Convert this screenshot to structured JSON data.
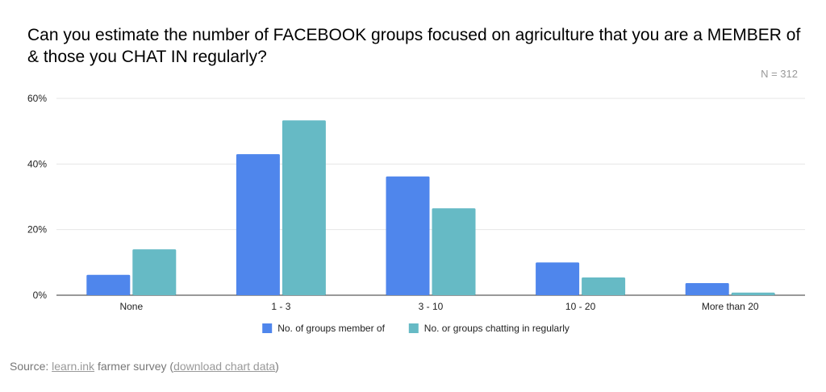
{
  "chart_data": {
    "type": "bar",
    "title": "Can you estimate the number of FACEBOOK groups focused on agriculture that you are a MEMBER of & those you CHAT IN regularly?",
    "note": "N = 312",
    "categories": [
      "None",
      "1 - 3",
      "3 - 10",
      "10 - 20",
      "More than 20"
    ],
    "series": [
      {
        "name": "No. of groups member of",
        "color": "#4f86ec",
        "values": [
          6.2,
          43,
          36.2,
          10,
          3.7
        ]
      },
      {
        "name": "No. or groups chatting in regularly",
        "color": "#66bac5",
        "values": [
          14,
          53.3,
          26.5,
          5.4,
          0.8
        ]
      }
    ],
    "yticks": [
      "0%",
      "20%",
      "40%",
      "60%"
    ],
    "ytick_values": [
      0,
      20,
      40,
      60
    ],
    "ylim": [
      0,
      60
    ],
    "grid": true,
    "legend": "bottom"
  },
  "source": {
    "prefix": "Source: ",
    "link": "learn.ink",
    "middle": " farmer survey (",
    "download": "download chart data",
    "suffix": ")"
  }
}
